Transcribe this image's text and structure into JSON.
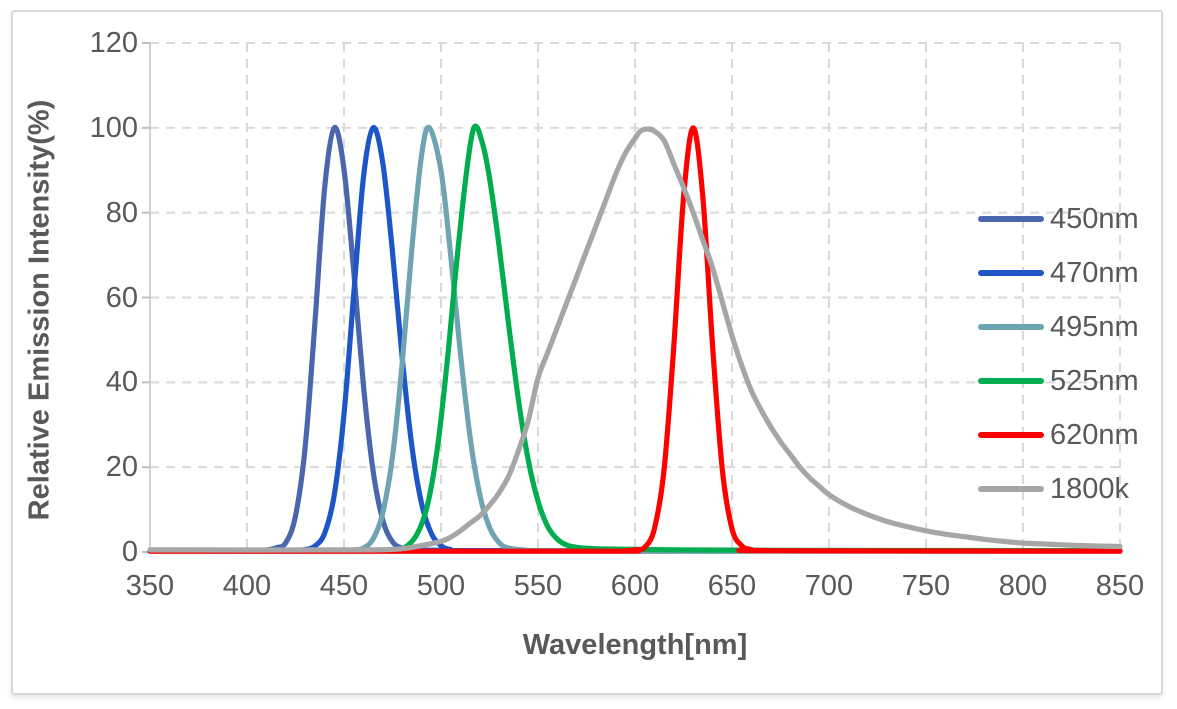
{
  "chart_data": {
    "type": "line",
    "title": "",
    "xlabel": "Wavelength[nm]",
    "ylabel": "Relative Emission Intensity(%)",
    "xlim": [
      350,
      850
    ],
    "ylim": [
      0,
      120
    ],
    "x_ticks": [
      350,
      400,
      450,
      500,
      550,
      600,
      650,
      700,
      750,
      800,
      850
    ],
    "y_ticks": [
      0,
      20,
      40,
      60,
      80,
      100,
      120
    ],
    "grid": true,
    "grid_style": "dashed",
    "legend_position": "right-inside",
    "series": [
      {
        "label": "450nm",
        "color": "#4A67AD",
        "peak_nm": 445,
        "points": [
          [
            350,
            0.3
          ],
          [
            400,
            0.3
          ],
          [
            410,
            0.5
          ],
          [
            415,
            1
          ],
          [
            420,
            2.2
          ],
          [
            425,
            8.5
          ],
          [
            430,
            24.8
          ],
          [
            435,
            54
          ],
          [
            440,
            85.7
          ],
          [
            445,
            100
          ],
          [
            450,
            90.2
          ],
          [
            455,
            66.2
          ],
          [
            460,
            39.4
          ],
          [
            465,
            19.1
          ],
          [
            470,
            7.5
          ],
          [
            475,
            2.4
          ],
          [
            480,
            0.9
          ],
          [
            485,
            0.4
          ],
          [
            495,
            0.3
          ],
          [
            850,
            0.3
          ]
        ]
      },
      {
        "label": "470nm",
        "color": "#1E56C7",
        "peak_nm": 465,
        "points": [
          [
            350,
            0.3
          ],
          [
            420,
            0.3
          ],
          [
            430,
            0.6
          ],
          [
            435,
            1.4
          ],
          [
            440,
            4.4
          ],
          [
            445,
            13.5
          ],
          [
            450,
            32.5
          ],
          [
            455,
            60.7
          ],
          [
            460,
            88.2
          ],
          [
            465,
            100
          ],
          [
            470,
            91.7
          ],
          [
            475,
            70.7
          ],
          [
            480,
            45.8
          ],
          [
            485,
            24.9
          ],
          [
            490,
            11.4
          ],
          [
            495,
            4.4
          ],
          [
            500,
            1.5
          ],
          [
            505,
            0.6
          ],
          [
            515,
            0.3
          ],
          [
            850,
            0.3
          ]
        ]
      },
      {
        "label": "495nm",
        "color": "#6FA4B2",
        "peak_nm": 494,
        "points": [
          [
            350,
            0.3
          ],
          [
            445,
            0.3
          ],
          [
            455,
            0.5
          ],
          [
            460,
            0.9
          ],
          [
            465,
            3.1
          ],
          [
            470,
            9.3
          ],
          [
            475,
            22.5
          ],
          [
            480,
            44.5
          ],
          [
            485,
            71.6
          ],
          [
            490,
            93.6
          ],
          [
            494,
            100
          ],
          [
            500,
            89.9
          ],
          [
            505,
            69.9
          ],
          [
            510,
            46.9
          ],
          [
            515,
            27.1
          ],
          [
            520,
            13.5
          ],
          [
            525,
            5.8
          ],
          [
            530,
            2.2
          ],
          [
            535,
            0.9
          ],
          [
            545,
            0.4
          ],
          [
            560,
            0.3
          ],
          [
            850,
            0.3
          ]
        ]
      },
      {
        "label": "525nm",
        "color": "#00AE50",
        "peak_nm": 517,
        "points": [
          [
            350,
            0.3
          ],
          [
            470,
            0.3
          ],
          [
            478,
            0.6
          ],
          [
            483,
            1.6
          ],
          [
            488,
            4.5
          ],
          [
            493,
            11
          ],
          [
            498,
            24
          ],
          [
            503,
            44
          ],
          [
            508,
            68
          ],
          [
            513,
            89
          ],
          [
            517,
            100
          ],
          [
            521,
            97
          ],
          [
            525,
            88.2
          ],
          [
            530,
            71.9
          ],
          [
            535,
            53.1
          ],
          [
            540,
            35.6
          ],
          [
            545,
            21.6
          ],
          [
            550,
            12
          ],
          [
            555,
            6
          ],
          [
            560,
            3
          ],
          [
            565,
            1.6
          ],
          [
            572,
            1
          ],
          [
            585,
            0.7
          ],
          [
            620,
            0.5
          ],
          [
            680,
            0.4
          ],
          [
            850,
            0.3
          ]
        ]
      },
      {
        "label": "620nm",
        "color": "#FF0000",
        "peak_nm": 630,
        "points": [
          [
            350,
            0.2
          ],
          [
            580,
            0.2
          ],
          [
            595,
            0.3
          ],
          [
            600,
            0.5
          ],
          [
            605,
            1.1
          ],
          [
            610,
            5.5
          ],
          [
            615,
            19.5
          ],
          [
            620,
            48.5
          ],
          [
            625,
            83.5
          ],
          [
            630,
            100
          ],
          [
            635,
            83.5
          ],
          [
            640,
            48.5
          ],
          [
            645,
            19.5
          ],
          [
            650,
            5.5
          ],
          [
            655,
            1.5
          ],
          [
            660,
            0.6
          ],
          [
            670,
            0.3
          ],
          [
            850,
            0.2
          ]
        ]
      },
      {
        "label": "1800k",
        "color": "#A6A6A6",
        "peak_nm": 605,
        "points": [
          [
            350,
            0.5
          ],
          [
            460,
            0.5
          ],
          [
            480,
            0.8
          ],
          [
            490,
            1.5
          ],
          [
            500,
            2.5
          ],
          [
            505,
            3.5
          ],
          [
            510,
            5
          ],
          [
            515,
            6.8
          ],
          [
            520,
            8.5
          ],
          [
            525,
            11
          ],
          [
            530,
            14
          ],
          [
            535,
            18
          ],
          [
            540,
            24
          ],
          [
            545,
            31
          ],
          [
            550,
            41
          ],
          [
            555,
            47
          ],
          [
            560,
            53
          ],
          [
            565,
            59
          ],
          [
            570,
            65
          ],
          [
            575,
            71
          ],
          [
            580,
            77
          ],
          [
            585,
            83
          ],
          [
            590,
            89
          ],
          [
            595,
            94
          ],
          [
            600,
            97.5
          ],
          [
            603,
            99.3
          ],
          [
            607,
            99.7
          ],
          [
            610,
            99.2
          ],
          [
            615,
            97
          ],
          [
            620,
            91.5
          ],
          [
            625,
            86
          ],
          [
            630,
            80
          ],
          [
            635,
            73.5
          ],
          [
            640,
            67
          ],
          [
            645,
            59
          ],
          [
            650,
            51
          ],
          [
            655,
            44
          ],
          [
            660,
            38
          ],
          [
            665,
            33.5
          ],
          [
            670,
            29.5
          ],
          [
            675,
            26
          ],
          [
            680,
            23
          ],
          [
            685,
            20
          ],
          [
            690,
            17.5
          ],
          [
            695,
            15.5
          ],
          [
            700,
            13.5
          ],
          [
            710,
            10.8
          ],
          [
            720,
            8.8
          ],
          [
            730,
            7.2
          ],
          [
            740,
            6
          ],
          [
            750,
            5
          ],
          [
            760,
            4.2
          ],
          [
            770,
            3.6
          ],
          [
            780,
            3
          ],
          [
            790,
            2.5
          ],
          [
            800,
            2.1
          ],
          [
            810,
            1.9
          ],
          [
            820,
            1.7
          ],
          [
            830,
            1.5
          ],
          [
            840,
            1.4
          ],
          [
            850,
            1.3
          ]
        ]
      }
    ]
  },
  "colors": {
    "background": "#FFFFFF",
    "frame_border": "#D9D9D9",
    "gridline": "#D9D9D9",
    "axis_line_y": "#D2D2D2",
    "axis_line_x": "#BFBFBF",
    "tick_mark": "#BFBFBF",
    "text": "#595959"
  }
}
